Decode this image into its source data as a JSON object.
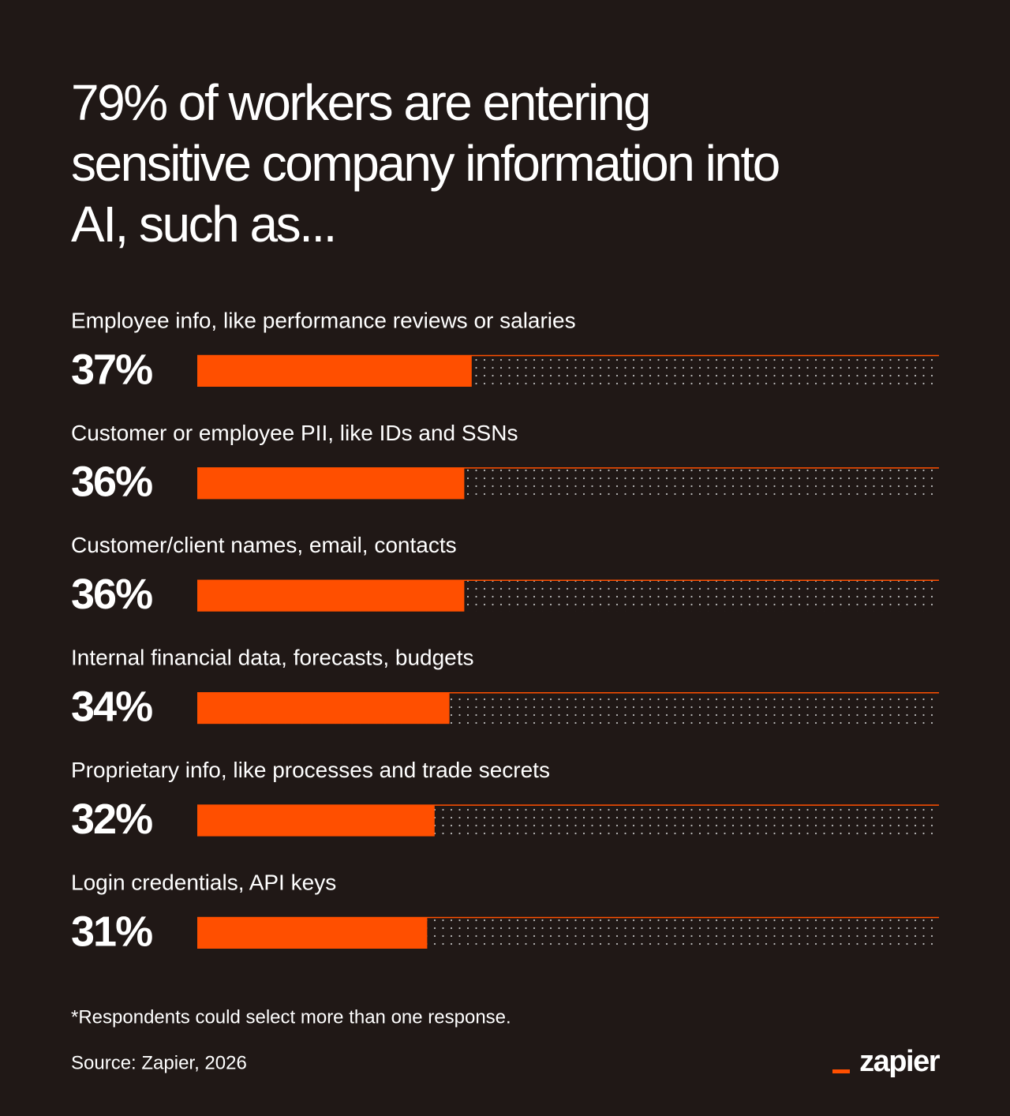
{
  "chart_data": {
    "type": "bar",
    "orientation": "horizontal",
    "title": "79% of workers are entering sensitive company information into AI, such as...",
    "categories": [
      "Employee info, like performance reviews or salaries",
      "Customer or employee PII, like IDs and SSNs",
      "Customer/client names, email, contacts",
      "Internal financial data, forecasts, budgets",
      "Proprietary info, like processes and trade secrets",
      "Login credentials, API keys"
    ],
    "values": [
      37,
      36,
      36,
      34,
      32,
      31
    ],
    "value_labels": [
      "37%",
      "36%",
      "36%",
      "34%",
      "32%",
      "31%"
    ],
    "color": "#ff4f00",
    "xlim": [
      0,
      100
    ],
    "note": "*Respondents could select more than one response.",
    "source": "Source: Zapier, 2026"
  },
  "logo": "zapier"
}
